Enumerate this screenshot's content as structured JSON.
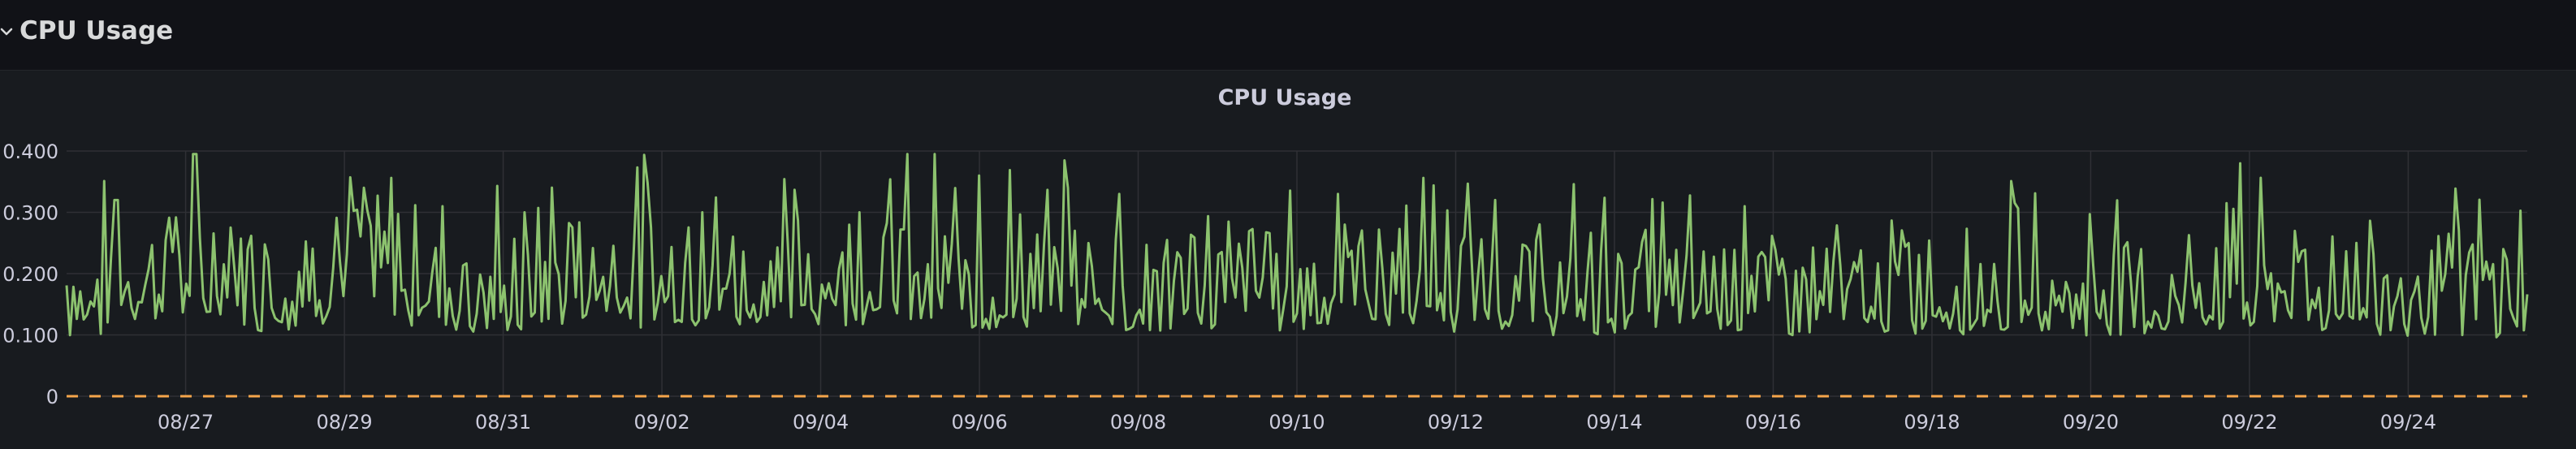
{
  "row": {
    "title": "CPU Usage"
  },
  "panel": {
    "title": "CPU Usage"
  },
  "colors": {
    "series": "#8cc26e",
    "threshold": "#f5a54b",
    "grid": "#2f3035",
    "tick_text": "#ccccdc",
    "background": "#181b1f"
  },
  "chart_data": {
    "type": "line",
    "title": "CPU Usage",
    "xlabel": "",
    "ylabel": "",
    "x_range": [
      "2025-08-25T12:00",
      "2025-09-25T12:00"
    ],
    "ylim": [
      0,
      0.4
    ],
    "y_ticks": [
      "0",
      "0.100",
      "0.200",
      "0.300",
      "0.400"
    ],
    "x_ticks": [
      "08/27",
      "08/29",
      "08/31",
      "09/02",
      "09/04",
      "09/06",
      "09/08",
      "09/10",
      "09/12",
      "09/14",
      "09/16",
      "09/18",
      "09/20",
      "09/22",
      "09/24"
    ],
    "grid": true,
    "legend": "none",
    "series": [
      {
        "x": [
          "2025-08-25T12:00",
          "2025-08-27T00:00",
          "2025-08-28T00:00",
          "2025-08-29T00:00",
          "2025-08-30T00:00",
          "2025-08-31T00:00",
          "2025-09-01T00:00",
          "2025-09-02T00:00",
          "2025-09-03T00:00",
          "2025-09-04T00:00",
          "2025-09-05T00:00",
          "2025-09-06T00:00",
          "2025-09-07T00:00",
          "2025-09-08T00:00",
          "2025-09-09T00:00",
          "2025-09-10T00:00",
          "2025-09-11T00:00",
          "2025-09-12T00:00",
          "2025-09-13T00:00",
          "2025-09-14T00:00",
          "2025-09-15T00:00",
          "2025-09-16T00:00",
          "2025-09-17T00:00",
          "2025-09-18T00:00",
          "2025-09-19T00:00",
          "2025-09-20T00:00",
          "2025-09-21T00:00",
          "2025-09-22T00:00",
          "2025-09-23T00:00",
          "2025-09-24T00:00",
          "2025-09-25T12:00"
        ],
        "values": [
          0.1,
          0.22,
          0.15,
          0.2,
          0.18,
          0.13,
          0.19,
          0.17,
          0.16,
          0.18,
          0.2,
          0.15,
          0.17,
          0.14,
          0.15,
          0.16,
          0.17,
          0.15,
          0.13,
          0.14,
          0.15,
          0.13,
          0.12,
          0.13,
          0.14,
          0.13,
          0.14,
          0.15,
          0.14,
          0.13,
          0.12
        ],
        "peaks": [
          {
            "x": "2025-08-26T03:00",
            "y": 0.32
          },
          {
            "x": "2025-08-29T06:00",
            "y": 0.34
          },
          {
            "x": "2025-09-02T12:00",
            "y": 0.3
          },
          {
            "x": "2025-09-04T12:00",
            "y": 0.3
          },
          {
            "x": "2025-09-06T00:00",
            "y": 0.36
          },
          {
            "x": "2025-09-07T03:00",
            "y": 0.34
          },
          {
            "x": "2025-09-07T18:00",
            "y": 0.33
          },
          {
            "x": "2025-09-10T12:00",
            "y": 0.33
          },
          {
            "x": "2025-09-12T12:00",
            "y": 0.32
          },
          {
            "x": "2025-09-15T15:00",
            "y": 0.31
          },
          {
            "x": "2025-09-21T21:00",
            "y": 0.38
          },
          {
            "x": "2025-09-24T15:00",
            "y": 0.27
          }
        ]
      },
      {
        "x": [
          "2025-08-25T12:00",
          "2025-09-25T12:00"
        ],
        "values": [
          0,
          0
        ]
      }
    ]
  }
}
